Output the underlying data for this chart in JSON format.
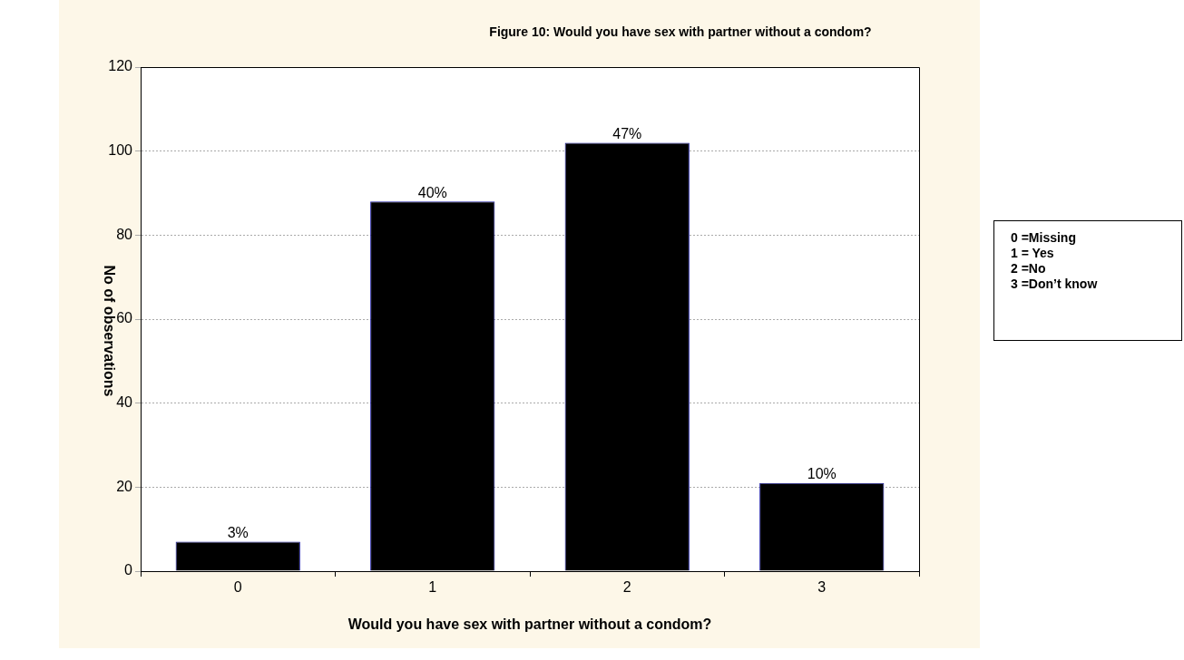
{
  "chart_data": {
    "type": "bar",
    "title": "Figure 10:  Would you have sex with partner without a condom?",
    "xlabel": "Would you have sex with partner without a condom?",
    "ylabel": "No of observations",
    "categories": [
      "0",
      "1",
      "2",
      "3"
    ],
    "values": [
      7,
      88,
      102,
      21
    ],
    "color": "#000000",
    "ylim": [
      0,
      120
    ],
    "yticks": [
      0,
      20,
      40,
      60,
      80,
      100,
      120
    ],
    "grid": "y",
    "legend": false,
    "annotations": [
      {
        "text": "3%",
        "x": "0",
        "y": 7
      },
      {
        "text": "40%",
        "x": "1",
        "y": 88
      },
      {
        "text": "47%",
        "x": "2",
        "y": 102
      },
      {
        "text": "10%",
        "x": "3",
        "y": 21
      },
      "0 =Missing",
      "1 = Yes",
      "2 =No",
      "3 =Don’t know"
    ]
  }
}
